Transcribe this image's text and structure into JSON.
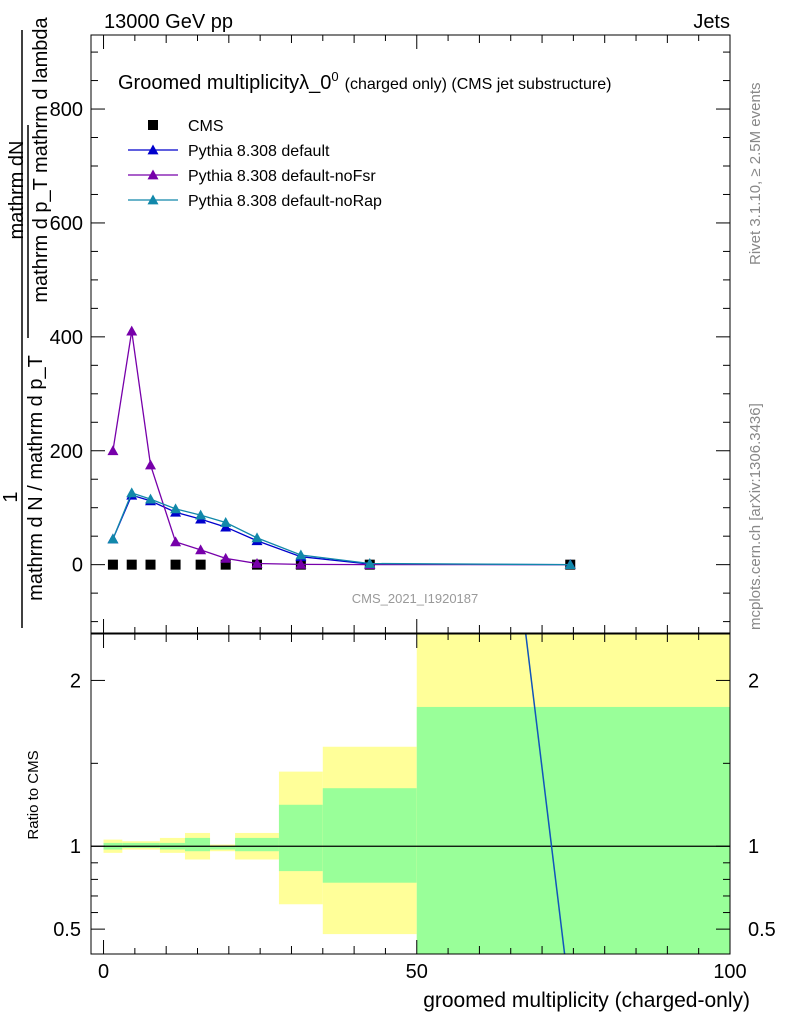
{
  "header": {
    "left": "13000 GeV pp",
    "right": "Jets"
  },
  "side_labels": {
    "rivet": "Rivet 3.1.10, ≥ 2.5M events",
    "mcplots": "mcplots.cern.ch [arXiv:1306.3436]"
  },
  "chart_data": [
    {
      "type": "line",
      "title": "Groomed multiplicityλ_0",
      "title_sup": "0",
      "title_suffix": "(charged only) (CMS jet substructure)",
      "watermark": "CMS_2021_I1920187",
      "ylabel_num": "mathrm dN",
      "ylabel_den": "mathrm d p_T mathrm d lambda",
      "ylabel_outer_num": "1",
      "ylabel_outer_den": "mathrm d N / mathrm d p_T",
      "ylabel_sub": "T",
      "ylim": [
        -120,
        930
      ],
      "yticks": [
        0,
        200,
        400,
        600,
        800
      ],
      "xlim": [
        -2,
        100
      ],
      "legend_position": "top-left",
      "series": [
        {
          "name": "CMS",
          "color": "#000000",
          "marker": "square",
          "x": [
            1.5,
            4.5,
            7.5,
            11.5,
            15.5,
            19.5,
            24.5,
            31.5,
            42.5,
            74.5
          ],
          "y": [
            0,
            0,
            0,
            0,
            0,
            0,
            0,
            0,
            0,
            0
          ]
        },
        {
          "name": "Pythia 8.308 default",
          "color": "#0000cc",
          "marker": "triangle",
          "x": [
            1.5,
            4.5,
            7.5,
            11.5,
            15.5,
            19.5,
            24.5,
            31.5,
            42.5,
            74.5
          ],
          "y": [
            45,
            122,
            112,
            92,
            80,
            66,
            42,
            14,
            1,
            0
          ]
        },
        {
          "name": "Pythia 8.308 default-noFsr",
          "color": "#7700aa",
          "marker": "triangle",
          "x": [
            1.5,
            4.5,
            7.5,
            11.5,
            15.5,
            19.5,
            24.5,
            31.5,
            42.5,
            74.5
          ],
          "y": [
            200,
            410,
            175,
            40,
            26,
            11,
            2,
            0.5,
            0,
            0
          ]
        },
        {
          "name": "Pythia 8.308 default-noRap",
          "color": "#1188aa",
          "marker": "triangle",
          "x": [
            1.5,
            4.5,
            7.5,
            11.5,
            15.5,
            19.5,
            24.5,
            31.5,
            42.5,
            74.5
          ],
          "y": [
            45,
            126,
            115,
            98,
            87,
            74,
            47,
            17,
            2,
            0
          ]
        }
      ]
    },
    {
      "type": "area",
      "ylabel": "Ratio to CMS",
      "xlabel": "groomed multiplicity (charged-only)",
      "ylim": [
        0.35,
        2.28
      ],
      "yticks": [
        0.5,
        1,
        2
      ],
      "ytick_labels": [
        "0.5",
        "1",
        "2"
      ],
      "xlim": [
        -2,
        100
      ],
      "xticks": [
        0,
        50,
        100
      ],
      "reference": 1,
      "bins": [
        {
          "lo": 0,
          "hi": 3,
          "inner": [
            0.98,
            1.02
          ],
          "outer": [
            0.96,
            1.04
          ]
        },
        {
          "lo": 3,
          "hi": 9,
          "inner": [
            0.99,
            1.02
          ],
          "outer": [
            0.98,
            1.03
          ]
        },
        {
          "lo": 9,
          "hi": 13,
          "inner": [
            0.98,
            1.02
          ],
          "outer": [
            0.96,
            1.05
          ]
        },
        {
          "lo": 13,
          "hi": 17,
          "inner": [
            0.97,
            1.05
          ],
          "outer": [
            0.92,
            1.08
          ]
        },
        {
          "lo": 17,
          "hi": 21,
          "inner": [
            0.98,
            1.0
          ],
          "outer": [
            0.97,
            1.01
          ]
        },
        {
          "lo": 21,
          "hi": 28,
          "inner": [
            0.97,
            1.05
          ],
          "outer": [
            0.92,
            1.08
          ]
        },
        {
          "lo": 28,
          "hi": 35,
          "inner": [
            0.85,
            1.25
          ],
          "outer": [
            0.65,
            1.45
          ]
        },
        {
          "lo": 35,
          "hi": 50,
          "inner": [
            0.78,
            1.35
          ],
          "outer": [
            0.47,
            1.6
          ]
        },
        {
          "lo": 50,
          "hi": 100,
          "inner": [
            0.35,
            1.84
          ],
          "outer": [
            0.35,
            2.28
          ]
        }
      ],
      "ratio_line": {
        "color": "#1155bb",
        "x": [
          67.4,
          73.6
        ],
        "y": [
          2.28,
          0.35
        ]
      }
    }
  ],
  "colors": {
    "band_inner": "#99ff99",
    "band_outer": "#ffff99",
    "side_text": "#888888",
    "watermark": "#999999"
  }
}
